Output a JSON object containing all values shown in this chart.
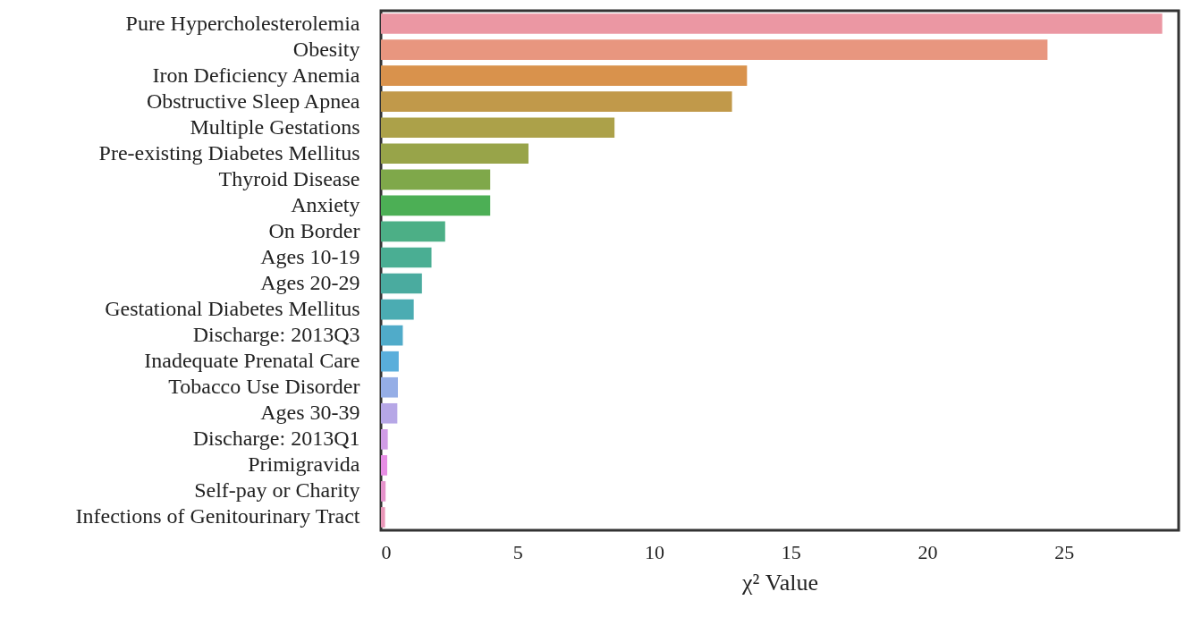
{
  "chart_data": {
    "type": "bar",
    "orientation": "horizontal",
    "xlabel": "χ² Value",
    "categories": [
      "Pure Hypercholesterolemia",
      "Obesity",
      "Iron Deficiency Anemia",
      "Obstructive Sleep Apnea",
      "Multiple Gestations",
      "Pre-existing Diabetes Mellitus",
      "Thyroid Disease",
      "Anxiety",
      "On Border",
      "Ages 10-19",
      "Ages 20-29",
      "Gestational Diabetes Mellitus",
      "Discharge: 2013Q3",
      "Inadequate Prenatal Care",
      "Tobacco Use Disorder",
      "Ages 30-39",
      "Discharge: 2013Q1",
      "Primigravida",
      "Self-pay or Charity",
      "Infections of Genitourinary Tract"
    ],
    "values": [
      28.6,
      24.4,
      13.4,
      12.85,
      8.55,
      5.4,
      4.0,
      4.0,
      2.35,
      1.85,
      1.5,
      1.2,
      0.8,
      0.65,
      0.62,
      0.6,
      0.25,
      0.23,
      0.17,
      0.15
    ],
    "colors": [
      "#eb97a3",
      "#e8967f",
      "#d9924c",
      "#c1994a",
      "#aca149",
      "#98a449",
      "#7fa84a",
      "#4caf55",
      "#4caf86",
      "#4aae93",
      "#4aab9f",
      "#4bacb2",
      "#50abc9",
      "#59aedb",
      "#95aee6",
      "#b6a7e6",
      "#d09ce6",
      "#e68de4",
      "#e593cb",
      "#e997b8"
    ],
    "xlim": [
      0,
      29.2
    ],
    "xticks": [
      0,
      5,
      10,
      15,
      20,
      25
    ],
    "grid": false
  }
}
